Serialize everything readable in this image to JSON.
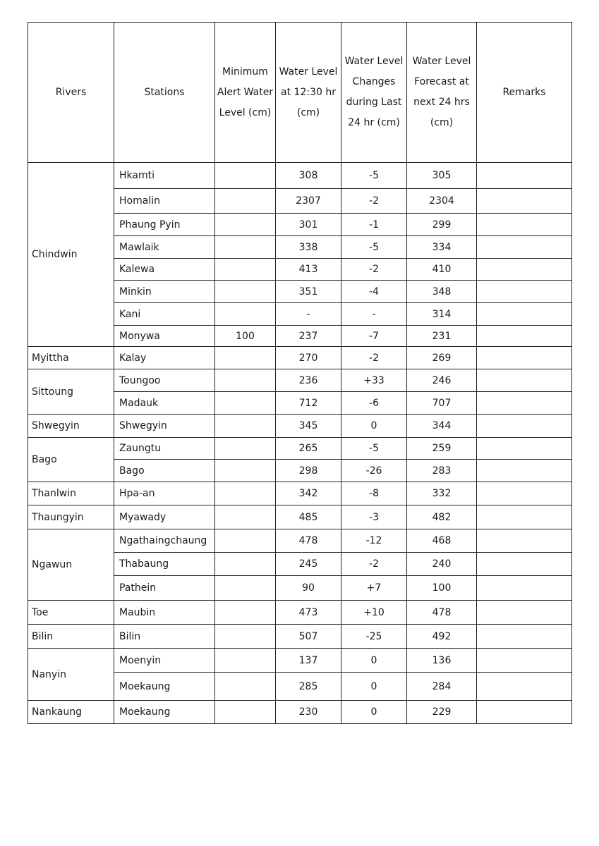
{
  "headers": {
    "river": "Rivers",
    "station": "Stations",
    "min_alert": "Minimum Alert Water Level (cm)",
    "level": "Water Level at 12:30 hr (cm)",
    "change": "Water Level Changes during Last 24 hr (cm)",
    "forecast": "Water Level Forecast at next 24 hrs (cm)",
    "remarks": "Remarks"
  },
  "groups": [
    {
      "river": "Chindwin",
      "stations": [
        {
          "name": "Hkamti",
          "min_alert": "",
          "level": "308",
          "change": "-5",
          "forecast": "305",
          "remarks": ""
        },
        {
          "name": "Homalin",
          "min_alert": "",
          "level": "2307",
          "change": "-2",
          "forecast": "2304",
          "remarks": ""
        },
        {
          "name": "Phaung Pyin",
          "min_alert": "",
          "level": "301",
          "change": "-1",
          "forecast": "299",
          "remarks": ""
        },
        {
          "name": "Mawlaik",
          "min_alert": "",
          "level": "338",
          "change": "-5",
          "forecast": "334",
          "remarks": ""
        },
        {
          "name": "Kalewa",
          "min_alert": "",
          "level": "413",
          "change": "-2",
          "forecast": "410",
          "remarks": ""
        },
        {
          "name": "Minkin",
          "min_alert": "",
          "level": "351",
          "change": "-4",
          "forecast": "348",
          "remarks": ""
        },
        {
          "name": "Kani",
          "min_alert": "",
          "level": "-",
          "change": "-",
          "forecast": "314",
          "remarks": ""
        },
        {
          "name": "Monywa",
          "min_alert": "100",
          "level": "237",
          "change": "-7",
          "forecast": "231",
          "remarks": ""
        }
      ]
    },
    {
      "river": "Myittha",
      "stations": [
        {
          "name": "Kalay",
          "min_alert": "",
          "level": "270",
          "change": "-2",
          "forecast": "269",
          "remarks": ""
        }
      ]
    },
    {
      "river": "Sittoung",
      "stations": [
        {
          "name": "Toungoo",
          "min_alert": "",
          "level": "236",
          "change": "+33",
          "forecast": "246",
          "remarks": ""
        },
        {
          "name": "Madauk",
          "min_alert": "",
          "level": "712",
          "change": "-6",
          "forecast": "707",
          "remarks": ""
        }
      ]
    },
    {
      "river": "Shwegyin",
      "stations": [
        {
          "name": "Shwegyin",
          "min_alert": "",
          "level": "345",
          "change": "0",
          "forecast": "344",
          "remarks": ""
        }
      ]
    },
    {
      "river": "Bago",
      "stations": [
        {
          "name": "Zaungtu",
          "min_alert": "",
          "level": "265",
          "change": "-5",
          "forecast": "259",
          "remarks": ""
        },
        {
          "name": "Bago",
          "min_alert": "",
          "level": "298",
          "change": "-26",
          "forecast": "283",
          "remarks": ""
        }
      ]
    },
    {
      "river": "Thanlwin",
      "stations": [
        {
          "name": "Hpa-an",
          "min_alert": "",
          "level": "342",
          "change": "-8",
          "forecast": "332",
          "remarks": ""
        }
      ]
    },
    {
      "river": "Thaungyin",
      "stations": [
        {
          "name": "Myawady",
          "min_alert": "",
          "level": "485",
          "change": "-3",
          "forecast": "482",
          "remarks": ""
        }
      ]
    },
    {
      "river": "Ngawun",
      "stations": [
        {
          "name": "Ngathaingchaung",
          "min_alert": "",
          "level": "478",
          "change": "-12",
          "forecast": "468",
          "remarks": ""
        },
        {
          "name": "Thabaung",
          "min_alert": "",
          "level": "245",
          "change": "-2",
          "forecast": "240",
          "remarks": ""
        },
        {
          "name": "Pathein",
          "min_alert": "",
          "level": "90",
          "change": "+7",
          "forecast": "100",
          "remarks": ""
        }
      ]
    },
    {
      "river": "Toe",
      "stations": [
        {
          "name": "Maubin",
          "min_alert": "",
          "level": "473",
          "change": "+10",
          "forecast": "478",
          "remarks": ""
        }
      ]
    },
    {
      "river": "Bilin",
      "stations": [
        {
          "name": "Bilin",
          "min_alert": "",
          "level": "507",
          "change": "-25",
          "forecast": "492",
          "remarks": ""
        }
      ]
    },
    {
      "river": "Nanyin",
      "stations": [
        {
          "name": "Moenyin",
          "min_alert": "",
          "level": "137",
          "change": "0",
          "forecast": "136",
          "remarks": ""
        },
        {
          "name": "Moekaung",
          "min_alert": "",
          "level": "285",
          "change": "0",
          "forecast": "284",
          "remarks": ""
        }
      ]
    },
    {
      "river": "Nankaung",
      "stations": [
        {
          "name": "Moekaung",
          "min_alert": "",
          "level": "230",
          "change": "0",
          "forecast": "229",
          "remarks": ""
        }
      ]
    }
  ]
}
